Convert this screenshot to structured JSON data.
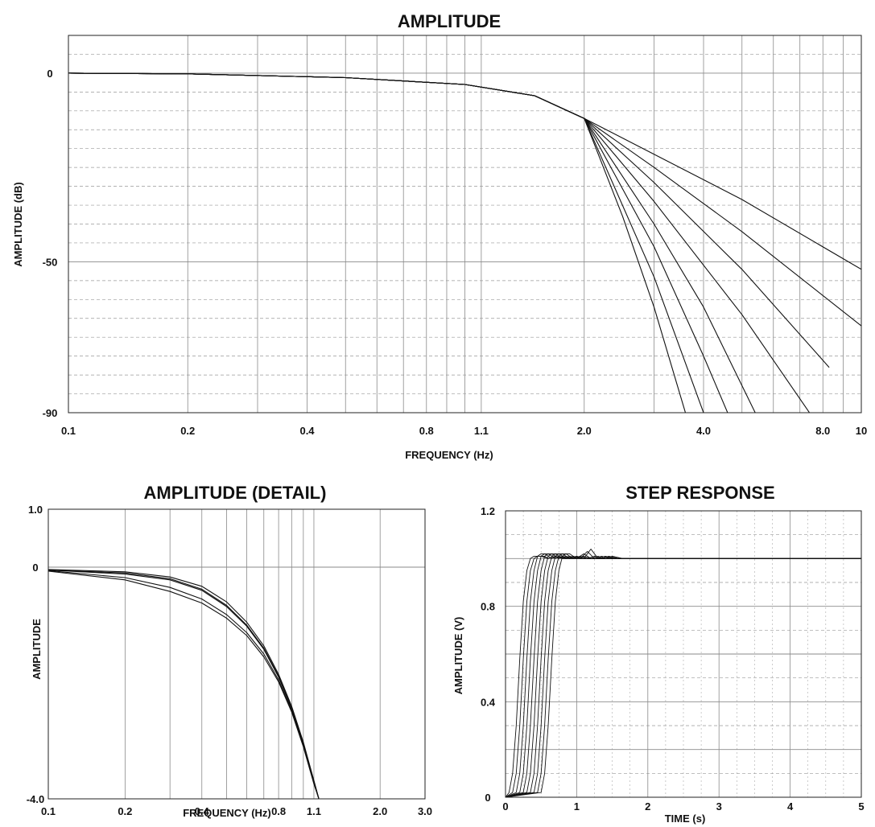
{
  "chart_data": [
    {
      "type": "line",
      "title": "AMPLITUDE",
      "xlabel": "FREQUENCY (Hz)",
      "ylabel": "AMPLITUDE (dB)",
      "x_scale": "log",
      "xlim": [
        0.1,
        10
      ],
      "ylim": [
        -90,
        10
      ],
      "x_tick_labels": [
        "0.1",
        "0.2",
        "0.4",
        "0.8",
        "1.1",
        "2.0",
        "4.0",
        "8.0",
        "10"
      ],
      "y_tick_labels": [
        "0",
        "-50",
        "-90"
      ],
      "grid": true,
      "series": [
        {
          "x": [
            0.1,
            0.2,
            0.5,
            1.0,
            1.5,
            2.0,
            3.0,
            5.0,
            10.0
          ],
          "y": [
            0,
            -0.2,
            -1.2,
            -3.0,
            -6.0,
            -12.0,
            -21.5,
            -33.5,
            -52.0
          ]
        },
        {
          "x": [
            0.1,
            0.2,
            0.5,
            1.0,
            1.5,
            2.0,
            3.0,
            5.0,
            10.0
          ],
          "y": [
            0,
            -0.2,
            -1.2,
            -3.0,
            -6.0,
            -12.0,
            -25.0,
            -42.0,
            -67.0
          ]
        },
        {
          "x": [
            0.1,
            0.2,
            0.5,
            1.0,
            1.5,
            2.0,
            3.0,
            5.0,
            8.3
          ],
          "y": [
            0,
            -0.2,
            -1.2,
            -3.0,
            -6.0,
            -12.0,
            -29.0,
            -52.0,
            -78.0
          ]
        },
        {
          "x": [
            0.1,
            0.2,
            0.5,
            1.0,
            1.5,
            2.0,
            3.0,
            5.0,
            7.4
          ],
          "y": [
            0,
            -0.2,
            -1.2,
            -3.0,
            -6.0,
            -12.0,
            -34.0,
            -64.0,
            -90.0
          ]
        },
        {
          "x": [
            0.1,
            0.2,
            0.5,
            1.0,
            1.5,
            2.0,
            3.0,
            4.0,
            5.4
          ],
          "y": [
            0,
            -0.2,
            -1.2,
            -3.0,
            -6.0,
            -12.0,
            -40.0,
            -62.0,
            -90.0
          ]
        },
        {
          "x": [
            0.1,
            0.2,
            0.5,
            1.0,
            1.5,
            2.0,
            3.0,
            4.0,
            4.6
          ],
          "y": [
            0,
            -0.2,
            -1.2,
            -3.0,
            -6.0,
            -12.0,
            -46.0,
            -75.0,
            -90.0
          ]
        },
        {
          "x": [
            0.1,
            0.2,
            0.5,
            1.0,
            1.5,
            2.0,
            3.0,
            4.0
          ],
          "y": [
            0,
            -0.2,
            -1.2,
            -3.0,
            -6.0,
            -12.0,
            -54.0,
            -90.0
          ]
        },
        {
          "x": [
            0.1,
            0.2,
            0.5,
            1.0,
            1.5,
            2.0,
            2.5,
            3.0,
            3.6
          ],
          "y": [
            0,
            -0.2,
            -1.2,
            -3.0,
            -6.0,
            -12.0,
            -38.0,
            -62.0,
            -90.0
          ]
        }
      ]
    },
    {
      "type": "line",
      "title": "AMPLITUDE (DETAIL)",
      "xlabel": "FREQUENCY (Hz)",
      "ylabel": "AMPLITUDE",
      "x_scale": "log",
      "xlim": [
        0.1,
        3.0
      ],
      "ylim": [
        -4.0,
        1.0
      ],
      "x_tick_labels": [
        "0.1",
        "0.2",
        "0.4",
        "0.8",
        "1.1",
        "2.0",
        "3.0"
      ],
      "y_tick_labels": [
        "1.0",
        "0",
        "-4.0"
      ],
      "grid": true,
      "series": [
        {
          "x": [
            0.1,
            0.2,
            0.3,
            0.4,
            0.5,
            0.6,
            0.7,
            0.8,
            0.9,
            1.0,
            1.1,
            1.15
          ],
          "y": [
            -0.05,
            -0.12,
            -0.22,
            -0.4,
            -0.68,
            -1.02,
            -1.42,
            -1.9,
            -2.45,
            -3.05,
            -3.7,
            -4.0
          ]
        },
        {
          "x": [
            0.1,
            0.2,
            0.3,
            0.4,
            0.5,
            0.6,
            0.7,
            0.8,
            0.9,
            1.0,
            1.1,
            1.15
          ],
          "y": [
            -0.04,
            -0.08,
            -0.17,
            -0.33,
            -0.6,
            -0.95,
            -1.36,
            -1.85,
            -2.4,
            -3.02,
            -3.68,
            -4.0
          ]
        },
        {
          "x": [
            0.1,
            0.2,
            0.3,
            0.4,
            0.5,
            0.6,
            0.7,
            0.8,
            0.9,
            1.0,
            1.1,
            1.15
          ],
          "y": [
            -0.06,
            -0.18,
            -0.35,
            -0.55,
            -0.82,
            -1.13,
            -1.5,
            -1.95,
            -2.48,
            -3.08,
            -3.72,
            -4.0
          ]
        },
        {
          "x": [
            0.1,
            0.2,
            0.3,
            0.4,
            0.5,
            0.6,
            0.7,
            0.8,
            0.9,
            1.0,
            1.1,
            1.15
          ],
          "y": [
            -0.05,
            -0.1,
            -0.2,
            -0.38,
            -0.66,
            -1.0,
            -1.4,
            -1.88,
            -2.43,
            -3.04,
            -3.69,
            -4.0
          ]
        },
        {
          "x": [
            0.1,
            0.2,
            0.3,
            0.4,
            0.5,
            0.6,
            0.7,
            0.8,
            0.9,
            1.0,
            1.1,
            1.15
          ],
          "y": [
            -0.07,
            -0.22,
            -0.42,
            -0.62,
            -0.88,
            -1.18,
            -1.55,
            -1.98,
            -2.5,
            -3.1,
            -3.74,
            -4.0
          ]
        }
      ]
    },
    {
      "type": "line",
      "title": "STEP RESPONSE",
      "xlabel": "TIME (s)",
      "ylabel": "AMPLITUDE (V)",
      "xlim": [
        0,
        5
      ],
      "ylim": [
        0,
        1.2
      ],
      "x_tick_labels": [
        "0",
        "1",
        "2",
        "3",
        "4",
        "5"
      ],
      "y_tick_labels": [
        "1.2",
        "0.8",
        "0.4",
        "0"
      ],
      "grid": true,
      "series": [
        {
          "x": [
            0,
            0.05,
            0.1,
            0.15,
            0.2,
            0.25,
            0.3,
            0.35,
            0.4,
            0.45,
            0.5,
            0.6,
            0.7,
            0.8,
            0.9,
            1.0,
            1.2,
            1.4,
            1.6,
            2.0,
            3.0,
            4.0,
            5.0
          ],
          "y": [
            0,
            0.02,
            0.1,
            0.3,
            0.58,
            0.82,
            0.95,
            1.0,
            1.01,
            1.01,
            1.01,
            1.0,
            1.01,
            1.0,
            1.0,
            1.0,
            1.0,
            1.0,
            1.0,
            1.0,
            1.0,
            1.0,
            1.0
          ]
        },
        {
          "x": [
            0,
            0.1,
            0.15,
            0.2,
            0.25,
            0.3,
            0.35,
            0.4,
            0.45,
            0.5,
            0.55,
            0.6,
            0.7,
            0.8,
            0.9,
            1.0,
            1.2,
            1.4,
            1.6,
            2.0,
            3.0,
            4.0,
            5.0
          ],
          "y": [
            0,
            0.02,
            0.1,
            0.3,
            0.58,
            0.82,
            0.95,
            1.0,
            1.01,
            1.01,
            1.01,
            1.0,
            1.01,
            1.0,
            1.0,
            1.0,
            1.0,
            1.0,
            1.0,
            1.0,
            1.0,
            1.0,
            1.0
          ]
        },
        {
          "x": [
            0,
            0.15,
            0.2,
            0.25,
            0.3,
            0.35,
            0.4,
            0.45,
            0.5,
            0.55,
            0.6,
            0.65,
            0.75,
            0.85,
            0.95,
            1.05,
            1.2,
            1.4,
            1.6,
            2.0,
            3.0,
            4.0,
            5.0
          ],
          "y": [
            0,
            0.02,
            0.1,
            0.3,
            0.58,
            0.82,
            0.95,
            1.01,
            1.02,
            1.02,
            1.01,
            1.0,
            1.01,
            1.0,
            1.01,
            1.0,
            1.0,
            1.0,
            1.0,
            1.0,
            1.0,
            1.0,
            1.0
          ]
        },
        {
          "x": [
            0,
            0.2,
            0.25,
            0.3,
            0.35,
            0.4,
            0.45,
            0.5,
            0.55,
            0.6,
            0.65,
            0.7,
            0.8,
            0.9,
            1.0,
            1.1,
            1.2,
            1.4,
            1.6,
            2.0,
            3.0,
            4.0,
            5.0
          ],
          "y": [
            0,
            0.02,
            0.1,
            0.3,
            0.58,
            0.82,
            0.95,
            1.01,
            1.02,
            1.02,
            1.01,
            1.0,
            1.01,
            1.0,
            1.01,
            1.0,
            1.0,
            1.0,
            1.0,
            1.0,
            1.0,
            1.0,
            1.0
          ]
        },
        {
          "x": [
            0,
            0.25,
            0.3,
            0.35,
            0.4,
            0.45,
            0.5,
            0.55,
            0.6,
            0.65,
            0.7,
            0.75,
            0.85,
            0.95,
            1.05,
            1.15,
            1.25,
            1.4,
            1.6,
            2.0,
            3.0,
            4.0,
            5.0
          ],
          "y": [
            0,
            0.02,
            0.1,
            0.3,
            0.58,
            0.82,
            0.95,
            1.01,
            1.02,
            1.02,
            1.01,
            1.0,
            1.01,
            1.0,
            1.01,
            1.0,
            1.0,
            1.0,
            1.0,
            1.0,
            1.0,
            1.0,
            1.0
          ]
        },
        {
          "x": [
            0,
            0.3,
            0.35,
            0.4,
            0.45,
            0.5,
            0.55,
            0.6,
            0.65,
            0.7,
            0.75,
            0.8,
            0.9,
            1.0,
            1.1,
            1.2,
            1.3,
            1.45,
            1.6,
            2.0,
            3.0,
            4.0,
            5.0
          ],
          "y": [
            0,
            0.02,
            0.1,
            0.3,
            0.58,
            0.82,
            0.95,
            1.01,
            1.02,
            1.02,
            1.01,
            1.0,
            1.01,
            1.0,
            1.02,
            1.0,
            1.0,
            1.0,
            1.0,
            1.0,
            1.0,
            1.0,
            1.0
          ]
        },
        {
          "x": [
            0,
            0.35,
            0.4,
            0.45,
            0.5,
            0.55,
            0.6,
            0.65,
            0.7,
            0.75,
            0.8,
            0.85,
            0.95,
            1.05,
            1.15,
            1.25,
            1.35,
            1.5,
            1.7,
            2.0,
            3.0,
            4.0,
            5.0
          ],
          "y": [
            0,
            0.02,
            0.1,
            0.3,
            0.58,
            0.82,
            0.95,
            1.01,
            1.02,
            1.02,
            1.01,
            1.0,
            1.01,
            1.0,
            1.03,
            1.0,
            1.01,
            1.0,
            1.0,
            1.0,
            1.0,
            1.0,
            1.0
          ]
        },
        {
          "x": [
            0,
            0.4,
            0.45,
            0.5,
            0.55,
            0.6,
            0.65,
            0.7,
            0.75,
            0.8,
            0.85,
            0.9,
            1.0,
            1.1,
            1.2,
            1.3,
            1.4,
            1.55,
            1.75,
            2.0,
            3.0,
            4.0,
            5.0
          ],
          "y": [
            0,
            0.02,
            0.1,
            0.3,
            0.58,
            0.82,
            0.95,
            1.01,
            1.02,
            1.02,
            1.01,
            1.0,
            1.01,
            1.0,
            1.04,
            1.0,
            1.01,
            1.0,
            1.0,
            1.0,
            1.0,
            1.0,
            1.0
          ]
        },
        {
          "x": [
            0,
            0.45,
            0.5,
            0.55,
            0.6,
            0.65,
            0.7,
            0.75,
            0.8,
            0.85,
            0.9,
            0.95,
            1.05,
            1.15,
            1.25,
            1.35,
            1.45,
            1.6,
            1.8,
            2.0,
            3.0,
            4.0,
            5.0
          ],
          "y": [
            0,
            0.02,
            0.1,
            0.3,
            0.58,
            0.82,
            0.95,
            1.01,
            1.02,
            1.02,
            1.01,
            1.0,
            1.01,
            1.0,
            1.01,
            1.0,
            1.01,
            1.0,
            1.0,
            1.0,
            1.0,
            1.0,
            1.0
          ]
        },
        {
          "x": [
            0,
            0.5,
            0.55,
            0.6,
            0.65,
            0.7,
            0.75,
            0.8,
            0.85,
            0.9,
            0.95,
            1.0,
            1.1,
            1.2,
            1.3,
            1.4,
            1.5,
            1.65,
            1.85,
            2.0,
            3.0,
            4.0,
            5.0
          ],
          "y": [
            0,
            0.02,
            0.1,
            0.3,
            0.58,
            0.82,
            0.95,
            1.01,
            1.02,
            1.02,
            1.01,
            1.0,
            1.01,
            1.0,
            1.01,
            1.0,
            1.01,
            1.0,
            1.0,
            1.0,
            1.0,
            1.0,
            1.0
          ]
        }
      ]
    }
  ]
}
